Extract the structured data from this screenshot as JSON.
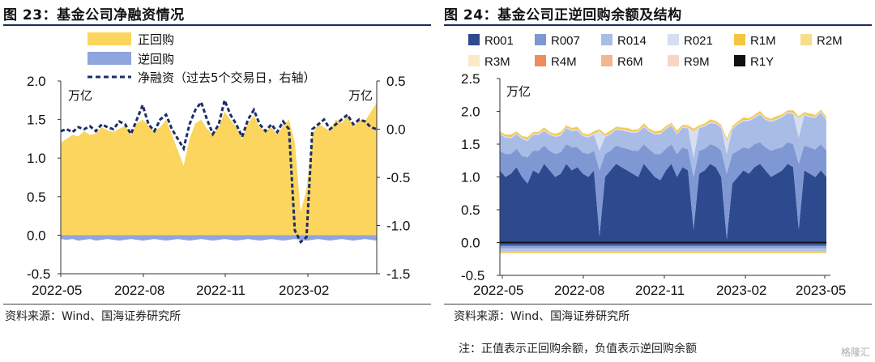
{
  "chart_data": [
    {
      "type": "area",
      "title": "图 23：基金公司净融资情况",
      "y_unit_left": "万亿",
      "y_unit_right": "万亿",
      "yticks_left": [
        "2.0",
        "1.5",
        "1.0",
        "0.5",
        "0.0",
        "-0.5"
      ],
      "yticks_right": [
        "0.5",
        "0.0",
        "-0.5",
        "-1.0",
        "-1.5"
      ],
      "xticks": [
        "2022-05",
        "2022-08",
        "2022-11",
        "2023-02"
      ],
      "ylim_left": [
        -0.5,
        2.0
      ],
      "ylim_right": [
        -1.5,
        0.5
      ],
      "legend": [
        "正回购",
        "逆回购",
        "净融资（过去5个交易日，右轴）"
      ],
      "series": [
        {
          "name": "正回购",
          "axis": "left",
          "values": [
            1.2,
            1.25,
            1.3,
            1.28,
            1.35,
            1.3,
            1.32,
            1.4,
            1.36,
            1.34,
            1.38,
            1.42,
            1.3,
            1.45,
            1.5,
            1.42,
            1.35,
            1.4,
            1.5,
            1.3,
            1.1,
            0.9,
            1.25,
            1.45,
            1.5,
            1.38,
            1.3,
            1.4,
            1.6,
            1.5,
            1.4,
            1.25,
            1.45,
            1.55,
            1.4,
            1.35,
            1.4,
            1.3,
            1.42,
            1.5,
            1.2,
            0.3,
            0.6,
            1.3,
            1.45,
            1.4,
            1.35,
            1.5,
            1.45,
            1.55,
            1.4,
            1.5,
            1.48,
            1.6,
            1.72
          ]
        },
        {
          "name": "逆回购",
          "axis": "left",
          "values": [
            -0.05,
            -0.06,
            -0.05,
            -0.07,
            -0.06,
            -0.05,
            -0.07,
            -0.06,
            -0.05,
            -0.06,
            -0.07,
            -0.06,
            -0.05,
            -0.06,
            -0.07,
            -0.06,
            -0.05,
            -0.06,
            -0.07,
            -0.06,
            -0.05,
            -0.06,
            -0.07,
            -0.06,
            -0.05,
            -0.06,
            -0.07,
            -0.06,
            -0.05,
            -0.06,
            -0.07,
            -0.06,
            -0.05,
            -0.06,
            -0.07,
            -0.06,
            -0.05,
            -0.06,
            -0.07,
            -0.06,
            -0.05,
            -0.06,
            -0.07,
            -0.06,
            -0.05,
            -0.06,
            -0.07,
            -0.06,
            -0.05,
            -0.06,
            -0.07,
            -0.06,
            -0.05,
            -0.06,
            -0.07
          ]
        },
        {
          "name": "净融资（过去5个交易日，右轴）",
          "axis": "right",
          "values": [
            -0.02,
            0.0,
            -0.03,
            0.02,
            0.0,
            0.03,
            -0.02,
            0.05,
            0.02,
            0.0,
            0.08,
            0.05,
            -0.05,
            0.1,
            0.25,
            0.05,
            -0.02,
            0.1,
            0.15,
            0.0,
            -0.1,
            -0.2,
            0.05,
            0.2,
            0.28,
            0.1,
            -0.05,
            0.05,
            0.3,
            0.15,
            0.05,
            -0.08,
            0.1,
            0.2,
            0.05,
            -0.02,
            0.05,
            -0.03,
            0.08,
            0.0,
            -1.05,
            -1.17,
            -1.12,
            0.0,
            0.05,
            0.1,
            0.0,
            0.05,
            0.1,
            0.15,
            0.05,
            0.1,
            0.08,
            0.02,
            0.0
          ]
        }
      ]
    },
    {
      "type": "area",
      "title": "图 24：基金公司正逆回购余额及结构",
      "y_unit": "万亿",
      "yticks": [
        "2.5",
        "2.0",
        "1.5",
        "1.0",
        "0.5",
        "0.0",
        "-0.5"
      ],
      "xticks": [
        "2022-05",
        "2022-08",
        "2022-11",
        "2023-02",
        "2023-05"
      ],
      "ylim": [
        -0.5,
        2.5
      ],
      "legend": [
        "R001",
        "R007",
        "R014",
        "R021",
        "R1M",
        "R2M",
        "R3M",
        "R4M",
        "R6M",
        "R9M",
        "R1Y"
      ],
      "colors": [
        "#2e4a8f",
        "#7f98d4",
        "#a9bce6",
        "#d6def2",
        "#f6c53d",
        "#f9dc8a",
        "#fbe9c4",
        "#f08c5c",
        "#f3b68f",
        "#f7d6c6",
        "#111111"
      ],
      "categories_n": 60,
      "series": [
        {
          "name": "R001",
          "values": [
            1.1,
            1.0,
            1.05,
            1.15,
            1.0,
            0.9,
            1.1,
            1.05,
            1.2,
            1.1,
            1.0,
            1.05,
            1.2,
            1.1,
            1.15,
            1.05,
            1.0,
            1.1,
            0.1,
            1.0,
            1.1,
            1.2,
            1.15,
            1.1,
            1.05,
            1.0,
            1.2,
            1.1,
            1.0,
            0.95,
            1.1,
            1.2,
            1.0,
            1.15,
            1.1,
            0.2,
            1.05,
            1.1,
            1.2,
            1.15,
            1.0,
            0.05,
            0.9,
            1.0,
            1.1,
            1.05,
            1.15,
            1.2,
            1.1,
            1.0,
            1.05,
            1.1,
            1.2,
            1.15,
            0.2,
            1.1,
            1.05,
            1.0,
            1.1,
            1.0
          ]
        },
        {
          "name": "R007",
          "values": [
            0.3,
            0.35,
            0.3,
            0.28,
            0.32,
            0.4,
            0.3,
            0.35,
            0.28,
            0.3,
            0.35,
            0.33,
            0.3,
            0.35,
            0.3,
            0.32,
            0.35,
            0.3,
            1.0,
            0.35,
            0.3,
            0.28,
            0.3,
            0.33,
            0.35,
            0.4,
            0.3,
            0.32,
            0.35,
            0.4,
            0.33,
            0.3,
            0.35,
            0.3,
            0.32,
            0.8,
            0.35,
            0.33,
            0.3,
            0.32,
            0.4,
            1.0,
            0.45,
            0.4,
            0.35,
            0.38,
            0.35,
            0.33,
            0.35,
            0.4,
            0.38,
            0.35,
            0.33,
            0.35,
            1.0,
            0.38,
            0.4,
            0.42,
            0.4,
            0.4
          ]
        },
        {
          "name": "R014",
          "values": [
            0.25,
            0.25,
            0.24,
            0.22,
            0.26,
            0.25,
            0.24,
            0.24,
            0.22,
            0.24,
            0.26,
            0.25,
            0.24,
            0.25,
            0.26,
            0.25,
            0.25,
            0.24,
            0.3,
            0.26,
            0.25,
            0.24,
            0.26,
            0.26,
            0.27,
            0.28,
            0.26,
            0.27,
            0.3,
            0.3,
            0.3,
            0.28,
            0.3,
            0.3,
            0.32,
            0.3,
            0.34,
            0.34,
            0.32,
            0.34,
            0.35,
            0.3,
            0.38,
            0.4,
            0.4,
            0.42,
            0.4,
            0.42,
            0.42,
            0.44,
            0.44,
            0.46,
            0.44,
            0.46,
            0.4,
            0.46,
            0.46,
            0.48,
            0.48,
            0.46
          ]
        },
        {
          "name": "R021",
          "values": [
            0.02,
            0.02,
            0.02,
            0.02,
            0.02,
            0.02,
            0.02,
            0.02,
            0.02,
            0.02,
            0.02,
            0.02,
            0.02,
            0.02,
            0.02,
            0.02,
            0.02,
            0.02,
            0.3,
            0.02,
            0.02,
            0.02,
            0.02,
            0.02,
            0.02,
            0.02,
            0.02,
            0.02,
            0.02,
            0.02,
            0.02,
            0.02,
            0.02,
            0.02,
            0.02,
            0.4,
            0.02,
            0.02,
            0.02,
            0.02,
            0.02,
            0.2,
            0.02,
            0.02,
            0.02,
            0.02,
            0.02,
            0.02,
            0.02,
            0.02,
            0.02,
            0.02,
            0.02,
            0.02,
            0.3,
            0.02,
            0.02,
            0.02,
            0.02,
            0.02
          ]
        },
        {
          "name": "R1M",
          "values": [
            0.02,
            0.02,
            0.03,
            0.02,
            0.02,
            0.03,
            0.02,
            0.02,
            0.03,
            0.02,
            0.02,
            0.03,
            0.02,
            0.02,
            0.03,
            0.02,
            0.02,
            0.03,
            0.02,
            0.02,
            0.03,
            0.02,
            0.02,
            0.03,
            0.02,
            0.02,
            0.03,
            0.02,
            0.02,
            0.03,
            0.02,
            0.02,
            0.03,
            0.02,
            0.02,
            0.03,
            0.02,
            0.02,
            0.03,
            0.02,
            0.02,
            0.03,
            0.02,
            0.02,
            0.03,
            0.02,
            0.02,
            0.03,
            0.02,
            0.02,
            0.03,
            0.02,
            0.02,
            0.03,
            0.02,
            0.02,
            0.03,
            0.02,
            0.02,
            0.03
          ]
        },
        {
          "name": "R2M",
          "values": [
            0.01,
            0.01,
            0.01,
            0.01,
            0.01,
            0.01,
            0.01,
            0.01,
            0.01,
            0.01,
            0.01,
            0.01,
            0.01,
            0.01,
            0.01,
            0.01,
            0.01,
            0.01,
            0.01,
            0.01,
            0.01,
            0.01,
            0.01,
            0.01,
            0.01,
            0.01,
            0.01,
            0.01,
            0.01,
            0.01,
            0.01,
            0.01,
            0.01,
            0.01,
            0.01,
            0.01,
            0.01,
            0.01,
            0.01,
            0.01,
            0.01,
            0.01,
            0.01,
            0.01,
            0.01,
            0.01,
            0.01,
            0.01,
            0.01,
            0.01,
            0.01,
            0.01,
            0.01,
            0.01,
            0.01,
            0.01,
            0.01,
            0.01,
            0.01,
            0.01
          ]
        },
        {
          "name": "R3M",
          "values": [
            0,
            0,
            0,
            0,
            0,
            0,
            0,
            0,
            0,
            0,
            0,
            0,
            0,
            0,
            0,
            0,
            0,
            0,
            0,
            0,
            0,
            0,
            0,
            0,
            0,
            0,
            0,
            0,
            0,
            0,
            0,
            0,
            0,
            0,
            0,
            0,
            0,
            0,
            0,
            0,
            0,
            0,
            0,
            0,
            0,
            0,
            0,
            0,
            0,
            0,
            0,
            0,
            0,
            0,
            0,
            0,
            0,
            0,
            0,
            0
          ]
        },
        {
          "name": "R4M",
          "values": [
            0,
            0,
            0,
            0,
            0,
            0,
            0,
            0,
            0,
            0,
            0,
            0,
            0,
            0,
            0,
            0,
            0,
            0,
            0,
            0,
            0,
            0,
            0,
            0,
            0,
            0,
            0,
            0,
            0,
            0,
            0,
            0,
            0,
            0,
            0,
            0,
            0,
            0,
            0,
            0,
            0,
            0,
            0,
            0,
            0,
            0,
            0,
            0,
            0,
            0,
            0,
            0,
            0,
            0,
            0,
            0,
            0,
            0,
            0,
            0
          ]
        },
        {
          "name": "R6M",
          "values": [
            0,
            0,
            0,
            0,
            0,
            0,
            0,
            0,
            0,
            0,
            0,
            0,
            0,
            0,
            0,
            0,
            0,
            0,
            0,
            0,
            0,
            0,
            0,
            0,
            0,
            0,
            0,
            0,
            0,
            0,
            0,
            0,
            0,
            0,
            0,
            0,
            0,
            0,
            0,
            0,
            0,
            0,
            0,
            0,
            0,
            0,
            0,
            0,
            0,
            0,
            0,
            0,
            0,
            0,
            0,
            0,
            0,
            0,
            0,
            0
          ]
        },
        {
          "name": "R9M",
          "values": [
            0,
            0,
            0,
            0,
            0,
            0,
            0,
            0,
            0,
            0,
            0,
            0,
            0,
            0,
            0,
            0,
            0,
            0,
            0,
            0,
            0,
            0,
            0,
            0,
            0,
            0,
            0,
            0,
            0,
            0,
            0,
            0,
            0,
            0,
            0,
            0,
            0,
            0,
            0,
            0,
            0,
            0,
            0,
            0,
            0,
            0,
            0,
            0,
            0,
            0,
            0,
            0,
            0,
            0,
            0,
            0,
            0,
            0,
            0,
            0
          ]
        },
        {
          "name": "R1Y",
          "values": [
            0,
            0,
            0,
            0,
            0,
            0,
            0,
            0,
            0,
            0,
            0,
            0,
            0,
            0,
            0,
            0,
            0,
            0,
            0,
            0,
            0,
            0,
            0,
            0,
            0,
            0,
            0,
            0,
            0,
            0,
            0,
            0,
            0,
            0,
            0,
            0,
            0,
            0,
            0,
            0,
            0,
            0,
            0,
            0,
            0,
            0,
            0,
            0,
            0,
            0,
            0,
            0,
            0,
            0,
            0,
            0,
            0,
            0,
            0,
            0
          ]
        }
      ],
      "negative": {
        "R001": -0.05,
        "R007": -0.04,
        "R014": -0.04,
        "R1M": -0.03
      }
    }
  ],
  "source_left": "资料来源：Wind、国海证券研究所",
  "source_right": "资料来源：Wind、国海证券研究所",
  "note": "注：正值表示正回购余额，负值表示逆回购余额",
  "watermark": "格隆汇"
}
